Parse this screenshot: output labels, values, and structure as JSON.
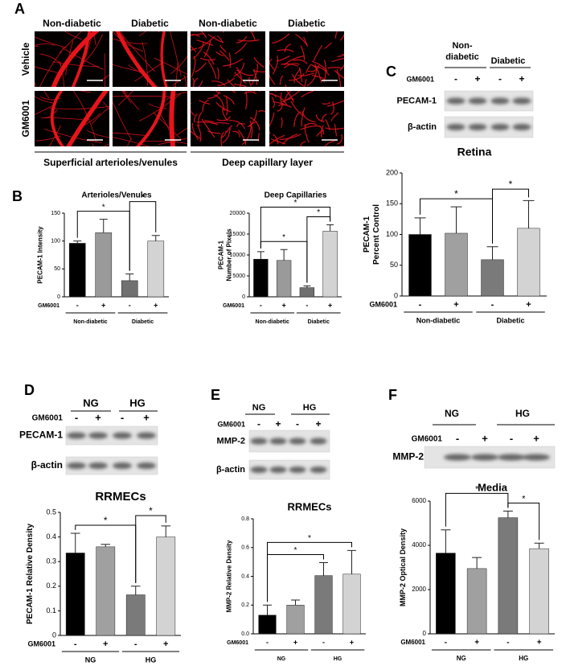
{
  "panel_labels": [
    "A",
    "B",
    "C",
    "D",
    "E",
    "F"
  ],
  "micrographs": {
    "columns": [
      "Non-diabetic",
      "Diabetic",
      "Non-diabetic",
      "Diabetic"
    ],
    "rows": [
      "Vehicle",
      "GM6001"
    ],
    "layers": [
      "Superficial arterioles/venules",
      "Deep capillary layer"
    ]
  },
  "blots": [
    {
      "groups": [
        [
          "Non-",
          "diabetic"
        ],
        [
          "Diabetic"
        ]
      ],
      "treatment": "GM6001",
      "lanes": [
        "-",
        "+",
        "-",
        "+"
      ],
      "proteins": [
        "PECAM-1",
        "β-actin"
      ]
    },
    {
      "groups": [
        [
          "NG"
        ],
        [
          "HG"
        ]
      ],
      "treatment": "GM6001",
      "lanes": [
        "-",
        "+",
        "-",
        "+"
      ],
      "proteins": [
        "PECAM-1",
        "β-actin"
      ]
    },
    {
      "groups": [
        [
          "NG"
        ],
        [
          "HG"
        ]
      ],
      "treatment": "GM6001",
      "lanes": [
        "-",
        "+",
        "-",
        "+"
      ],
      "proteins": [
        "MMP-2",
        "β-actin"
      ]
    },
    {
      "groups": [
        [
          "NG"
        ],
        [
          "HG"
        ]
      ],
      "treatment": "GM6001",
      "lanes": [
        "-",
        "+",
        "-",
        "+"
      ],
      "proteins": [
        "MMP-2"
      ]
    }
  ],
  "chart_data": [
    {
      "type": "bar",
      "title": "Arterioles/Venules",
      "ylabel": [
        "PECAM-1 Intensity"
      ],
      "xlabel": "GM6001",
      "categories": [
        "-",
        "+",
        "-",
        "+"
      ],
      "groups": [
        "Non-diabetic",
        "Diabetic"
      ],
      "values": [
        96,
        115,
        29,
        100
      ],
      "errors": [
        4,
        24,
        12,
        10
      ],
      "colors": [
        "#000000",
        "#9a9a9a",
        "#707070",
        "#d3d3d3"
      ],
      "ylim": [
        0,
        150
      ],
      "yticks": [
        0,
        50,
        100,
        150
      ],
      "comparisons": [
        {
          "bars": [
            0,
            2
          ],
          "label": "*"
        },
        {
          "bars": [
            2,
            3
          ],
          "label": "*"
        }
      ]
    },
    {
      "type": "bar",
      "title": "Deep Capillaries",
      "ylabel": [
        "PECAM-1",
        "Number of Pixels"
      ],
      "xlabel": "GM6001",
      "categories": [
        "-",
        "+",
        "-",
        "+"
      ],
      "groups": [
        "Non-diabetic",
        "Diabetic"
      ],
      "values": [
        9000,
        8700,
        2200,
        15700
      ],
      "errors": [
        1800,
        2600,
        400,
        1500
      ],
      "colors": [
        "#000000",
        "#9a9a9a",
        "#707070",
        "#d3d3d3"
      ],
      "ylim": [
        0,
        20000
      ],
      "yticks": [
        0,
        5000,
        10000,
        15000,
        20000
      ],
      "comparisons": [
        {
          "bars": [
            0,
            2
          ],
          "label": "*"
        },
        {
          "bars": [
            2,
            3
          ],
          "label": "*"
        },
        {
          "bars": [
            0,
            3
          ],
          "label": "*"
        }
      ]
    },
    {
      "type": "bar",
      "title": "Retina",
      "ylabel": [
        "PECAM-1",
        "Percent Control"
      ],
      "xlabel": "GM6001",
      "categories": [
        "-",
        "+",
        "-",
        "+"
      ],
      "groups": [
        "Non-diabetic",
        "Diabetic"
      ],
      "values": [
        100,
        102,
        59,
        110
      ],
      "errors": [
        27,
        43,
        21,
        45
      ],
      "colors": [
        "#000000",
        "#a0a0a0",
        "#7a7a7a",
        "#d3d3d3"
      ],
      "ylim": [
        0,
        200
      ],
      "yticks": [
        0,
        50,
        100,
        150,
        200
      ],
      "comparisons": [
        {
          "bars": [
            0,
            2
          ],
          "label": "*"
        },
        {
          "bars": [
            2,
            3
          ],
          "label": "*"
        }
      ]
    },
    {
      "type": "bar",
      "title": "RRMECs",
      "ylabel": [
        "PECAM-1 Relative Density"
      ],
      "xlabel": "GM6001",
      "categories": [
        "-",
        "+",
        "-",
        "+"
      ],
      "groups": [
        "NG",
        "HG"
      ],
      "values": [
        0.335,
        0.36,
        0.165,
        0.4
      ],
      "errors": [
        0.08,
        0.01,
        0.035,
        0.045
      ],
      "colors": [
        "#000000",
        "#a0a0a0",
        "#7a7a7a",
        "#d3d3d3"
      ],
      "ylim": [
        0,
        0.5
      ],
      "yticks": [
        0,
        0.1,
        0.2,
        0.3,
        0.4,
        0.5
      ],
      "comparisons": [
        {
          "bars": [
            0,
            2
          ],
          "label": "*"
        },
        {
          "bars": [
            2,
            3
          ],
          "label": "*"
        }
      ]
    },
    {
      "type": "bar",
      "title": "RRMECs",
      "ylabel": [
        "MMP-2 Relative Density"
      ],
      "xlabel": "GM6001",
      "categories": [
        "-",
        "+",
        "-",
        "+"
      ],
      "groups": [
        "NG",
        "HG"
      ],
      "values": [
        0.13,
        0.2,
        0.405,
        0.415
      ],
      "errors": [
        0.07,
        0.035,
        0.09,
        0.165
      ],
      "colors": [
        "#000000",
        "#a0a0a0",
        "#7a7a7a",
        "#d3d3d3"
      ],
      "ylim": [
        0,
        0.8
      ],
      "yticks": [
        {
          "value": 0,
          "label": "0.0"
        },
        0.2,
        0.4,
        0.6,
        0.8
      ],
      "comparisons": [
        {
          "bars": [
            0,
            2
          ],
          "label": "*"
        },
        {
          "bars": [
            0,
            3
          ],
          "label": "*"
        }
      ]
    },
    {
      "type": "bar",
      "title": "Media",
      "ylabel": [
        "MMP-2 Optical Density"
      ],
      "xlabel": "GM6001",
      "categories": [
        "-",
        "+",
        "-",
        "+"
      ],
      "groups": [
        "NG",
        "HG"
      ],
      "values": [
        3650,
        2950,
        5250,
        3850
      ],
      "errors": [
        1050,
        500,
        300,
        250
      ],
      "colors": [
        "#000000",
        "#a0a0a0",
        "#7a7a7a",
        "#d3d3d3"
      ],
      "ylim": [
        0,
        6000
      ],
      "yticks": [
        0,
        2000,
        4000,
        6000
      ],
      "comparisons": [
        {
          "bars": [
            2,
            3
          ],
          "label": "*"
        },
        {
          "bars": [
            0,
            2
          ],
          "label": "*"
        }
      ]
    }
  ]
}
